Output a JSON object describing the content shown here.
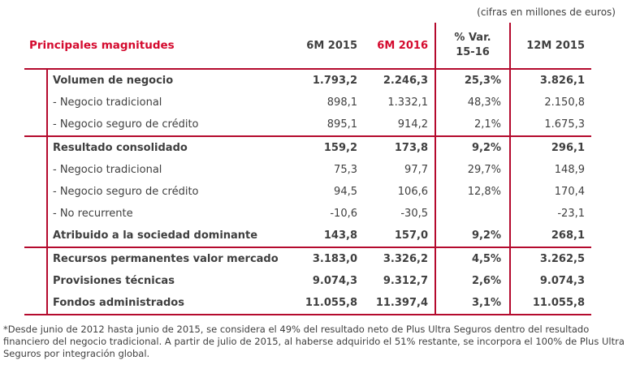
{
  "units_note": "(cifras en millones de euros)",
  "accent_color": "#d40a2e",
  "line_color": "#b40a2d",
  "table": {
    "title": "Principales magnitudes",
    "columns": {
      "c1": "6M 2015",
      "c2": "6M 2016",
      "c3_line1": "% Var.",
      "c3_line2": "15-16",
      "c4": "12M 2015"
    },
    "rows": [
      {
        "label": "Volumen de negocio",
        "m6_2015": "1.793,2",
        "m6_2016": "2.246,3",
        "var": "25,3%",
        "m12_2015": "3.826,1"
      },
      {
        "label": "- Negocio tradicional",
        "m6_2015": "898,1",
        "m6_2016": "1.332,1",
        "var": "48,3%",
        "m12_2015": "2.150,8"
      },
      {
        "label": "- Negocio seguro de crédito",
        "m6_2015": "895,1",
        "m6_2016": "914,2",
        "var": "2,1%",
        "m12_2015": "1.675,3"
      },
      {
        "label": "Resultado consolidado",
        "m6_2015": "159,2",
        "m6_2016": "173,8",
        "var": "9,2%",
        "m12_2015": "296,1"
      },
      {
        "label": "- Negocio tradicional",
        "m6_2015": "75,3",
        "m6_2016": "97,7",
        "var": "29,7%",
        "m12_2015": "148,9"
      },
      {
        "label": "- Negocio seguro de crédito",
        "m6_2015": "94,5",
        "m6_2016": "106,6",
        "var": "12,8%",
        "m12_2015": "170,4"
      },
      {
        "label": "- No recurrente",
        "m6_2015": "-10,6",
        "m6_2016": "-30,5",
        "var": "",
        "m12_2015": "-23,1"
      },
      {
        "label": "Atribuido a la sociedad dominante",
        "m6_2015": "143,8",
        "m6_2016": "157,0",
        "var": "9,2%",
        "m12_2015": "268,1"
      },
      {
        "label": "Recursos permanentes valor mercado",
        "m6_2015": "3.183,0",
        "m6_2016": "3.326,2",
        "var": "4,5%",
        "m12_2015": "3.262,5"
      },
      {
        "label": "Provisiones técnicas",
        "m6_2015": "9.074,3",
        "m6_2016": "9.312,7",
        "var": "2,6%",
        "m12_2015": "9.074,3"
      },
      {
        "label": "Fondos administrados",
        "m6_2015": "11.055,8",
        "m6_2016": "11.397,4",
        "var": "3,1%",
        "m12_2015": "11.055,8"
      }
    ]
  },
  "footnote": "*Desde junio de 2012 hasta junio de 2015, se considera el 49% del resultado neto de Plus Ultra Seguros dentro del resultado financiero del negocio tradicional. A partir de julio de 2015, al haberse adquirido el 51% restante, se incorpora el 100% de Plus Ultra Seguros por integración global."
}
